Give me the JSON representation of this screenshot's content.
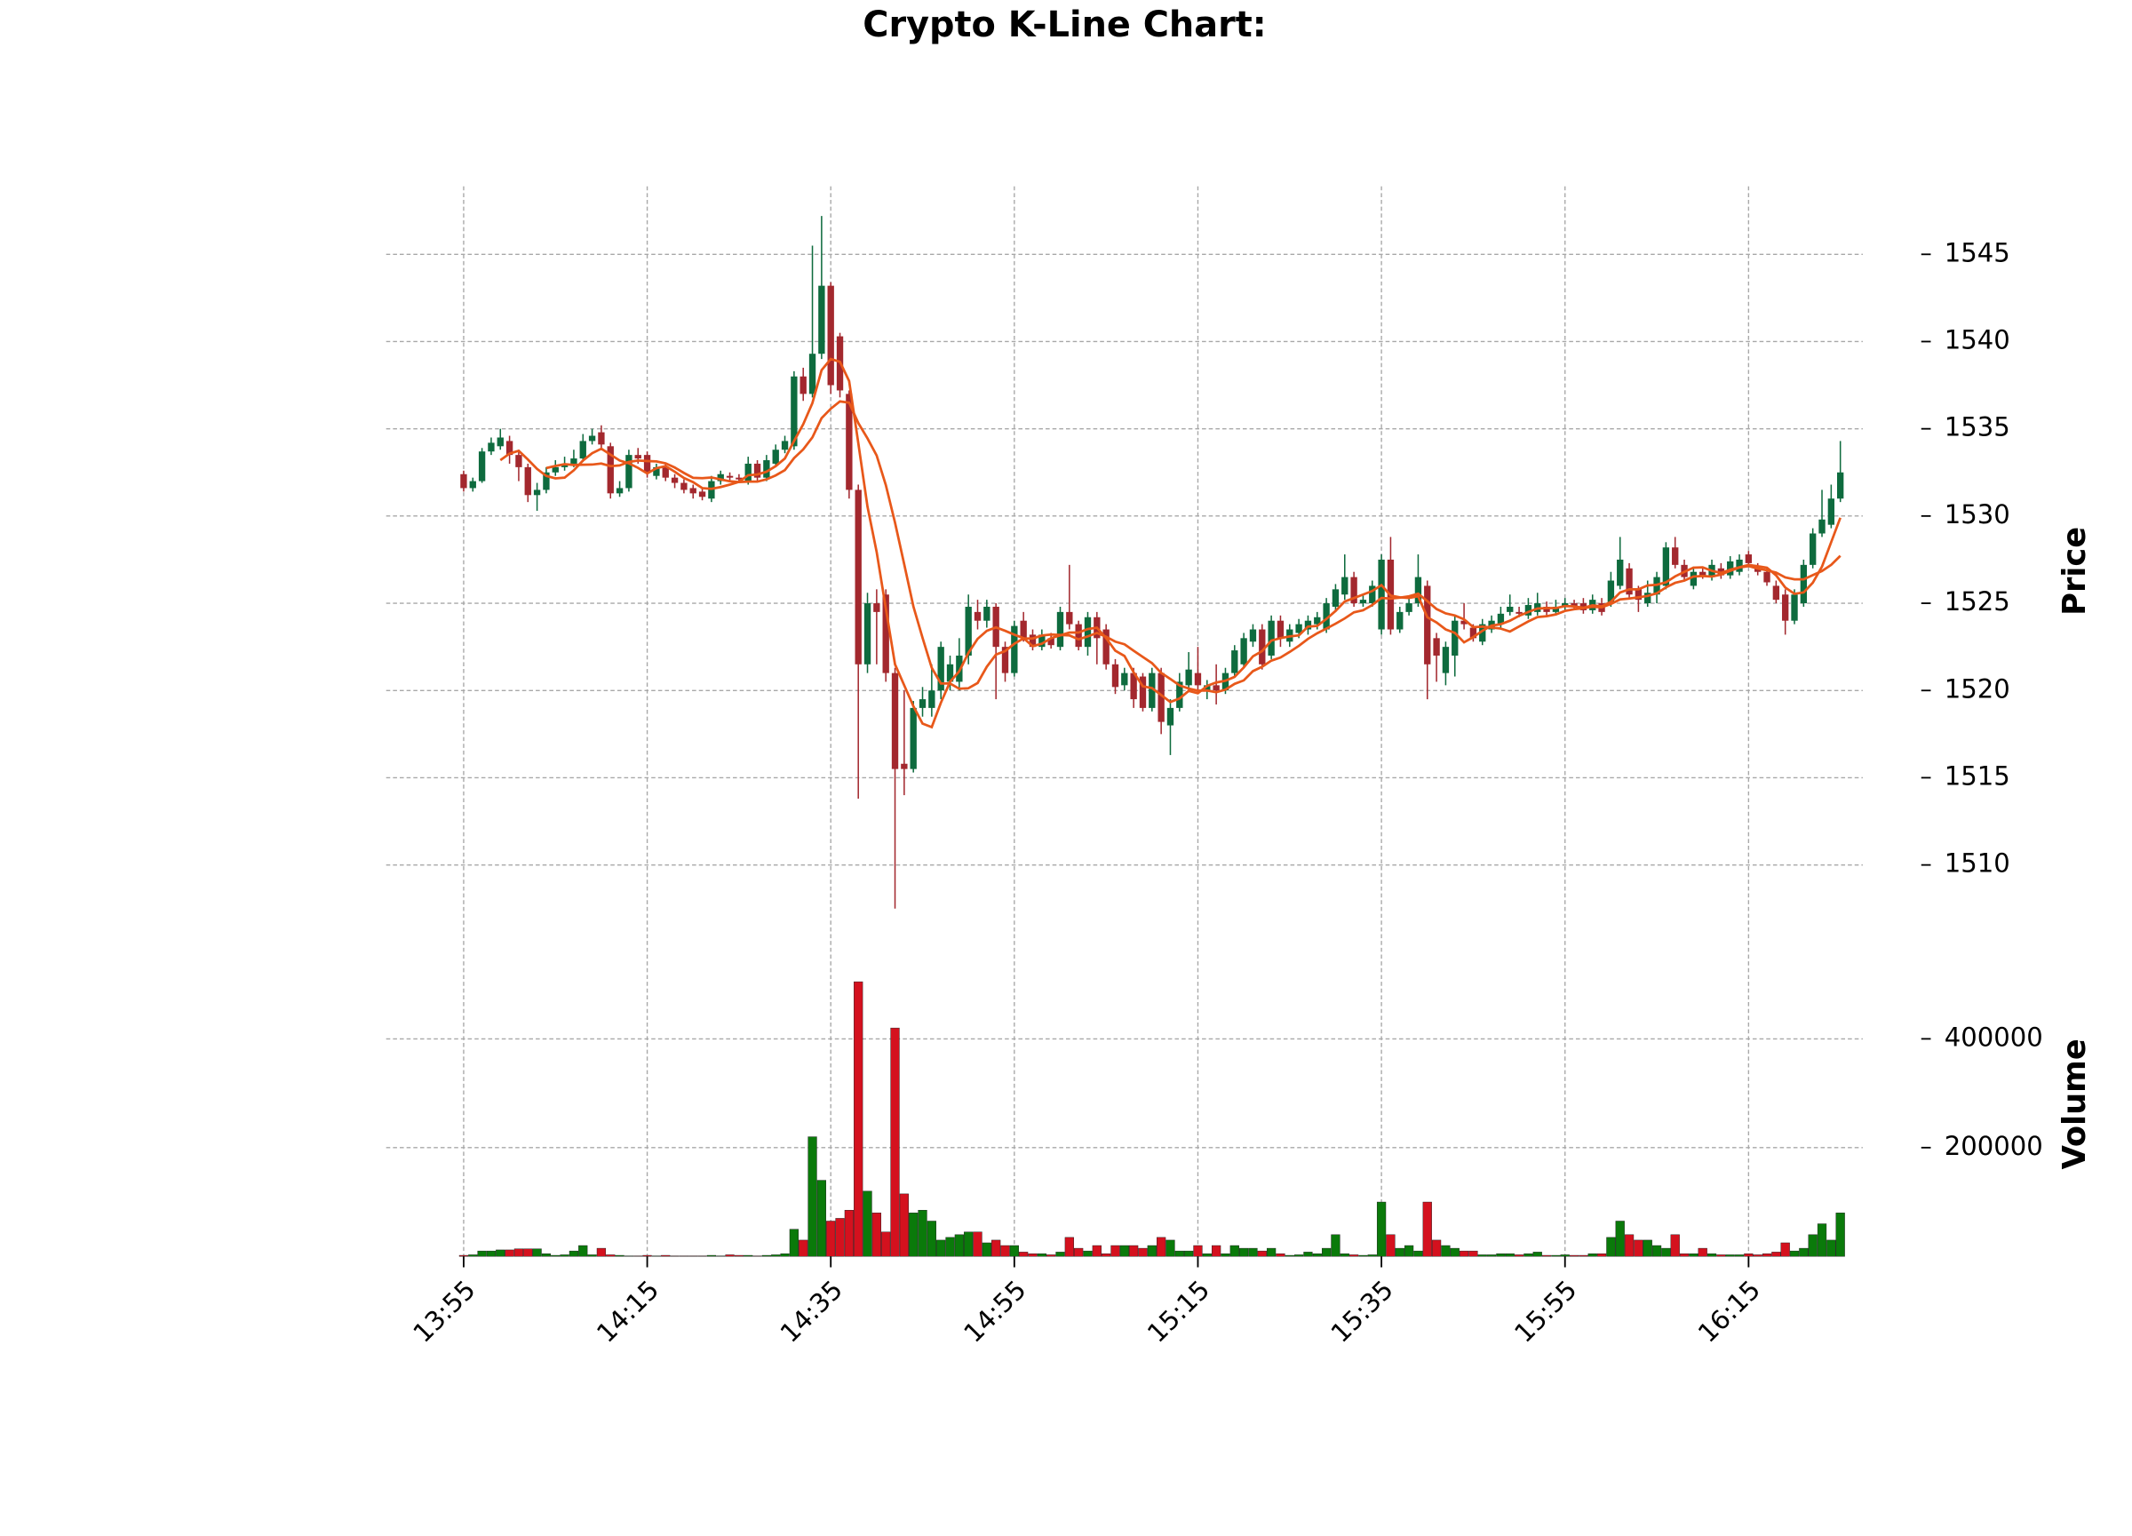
{
  "chart_data": {
    "type": "candlestick",
    "title": "Crypto K-Line Chart:",
    "ylabel": "Price",
    "volume_label": "Volume",
    "categories": [
      "13:55",
      null,
      null,
      null,
      null,
      null,
      null,
      null,
      null,
      null,
      null,
      null,
      null,
      null,
      null,
      null,
      null,
      null,
      null,
      null,
      "14:15",
      null,
      null,
      null,
      null,
      null,
      null,
      null,
      null,
      null,
      null,
      null,
      null,
      null,
      null,
      null,
      null,
      null,
      null,
      null,
      "14:35",
      null,
      null,
      null,
      null,
      null,
      null,
      null,
      null,
      null,
      null,
      null,
      null,
      null,
      null,
      null,
      null,
      null,
      null,
      null,
      "14:55",
      null,
      null,
      null,
      null,
      null,
      null,
      null,
      null,
      null,
      null,
      null,
      null,
      null,
      null,
      null,
      null,
      null,
      null,
      null,
      "15:15",
      null,
      null,
      null,
      null,
      null,
      null,
      null,
      null,
      null,
      null,
      null,
      null,
      null,
      null,
      null,
      null,
      null,
      null,
      null,
      "15:35",
      null,
      null,
      null,
      null,
      null,
      null,
      null,
      null,
      null,
      null,
      null,
      null,
      null,
      null,
      null,
      null,
      null,
      null,
      null,
      "15:55",
      null,
      null,
      null,
      null,
      null,
      null,
      null,
      null,
      null,
      null,
      null,
      null,
      null,
      null,
      null,
      null,
      null,
      null,
      null,
      "16:15",
      null,
      null,
      null,
      null,
      null,
      null,
      null,
      null,
      null,
      null
    ],
    "open": [
      1532.4,
      1531.6,
      1532.0,
      1533.7,
      1534.0,
      1534.3,
      1533.5,
      1532.8,
      1531.2,
      1531.5,
      1532.5,
      1532.8,
      1533.0,
      1533.3,
      1534.3,
      1534.8,
      1534.0,
      1531.3,
      1531.6,
      1533.5,
      1533.5,
      1532.3,
      1532.8,
      1532.2,
      1531.9,
      1531.6,
      1531.4,
      1531.0,
      1532.0,
      1532.3,
      1532.2,
      1532.0,
      1533.0,
      1532.2,
      1533.0,
      1533.8,
      1534.0,
      1538.0,
      1537.0,
      1539.3,
      1543.2,
      1540.3,
      1537.0,
      1531.5,
      1521.5,
      1525.0,
      1525.5,
      1521.0,
      1515.8,
      1515.5,
      1519.0,
      1519.0,
      1520.0,
      1520.5,
      1520.5,
      1522.0,
      1524.5,
      1524.0,
      1524.8,
      1522.5,
      1521.0,
      1524.0,
      1523.2,
      1522.5,
      1523.0,
      1522.5,
      1524.5,
      1523.8,
      1522.5,
      1524.2,
      1523.5,
      1521.5,
      1520.3,
      1521.0,
      1520.8,
      1519.0,
      1521.0,
      1518.0,
      1519.0,
      1520.3,
      1521.0,
      1520.0,
      1520.3,
      1520.0,
      1521.0,
      1521.5,
      1522.8,
      1523.5,
      1522.0,
      1524.0,
      1522.8,
      1523.3,
      1523.5,
      1523.8,
      1523.5,
      1524.8,
      1525.5,
      1526.5,
      1525.0,
      1525.0,
      1523.5,
      1527.5,
      1523.5,
      1524.5,
      1525.0,
      1526.0,
      1523.0,
      1521.0,
      1522.0,
      1524.0,
      1523.6,
      1522.8,
      1523.5,
      1523.8,
      1524.5,
      1524.5,
      1524.3,
      1524.5,
      1524.8,
      1524.5,
      1524.8,
      1525.0,
      1525.0,
      1524.6,
      1525.0,
      1525.0,
      1526.0,
      1527.0,
      1525.8,
      1525.0,
      1525.5,
      1526.0,
      1528.2,
      1527.2,
      1526.0,
      1526.8,
      1526.5,
      1527.0,
      1526.6,
      1526.8,
      1527.8,
      1527.0,
      1526.8,
      1526.0,
      1525.5,
      1524.0,
      1525.0,
      1527.2,
      1529.0,
      1529.5,
      1531.0
    ],
    "high": [
      1532.6,
      1532.2,
      1533.9,
      1534.5,
      1535.0,
      1534.6,
      1533.8,
      1533.0,
      1531.9,
      1532.8,
      1533.2,
      1533.4,
      1533.8,
      1534.7,
      1535.0,
      1535.2,
      1534.2,
      1532.0,
      1533.8,
      1533.9,
      1533.7,
      1533.0,
      1533.0,
      1532.4,
      1532.1,
      1531.8,
      1531.6,
      1532.3,
      1532.6,
      1532.5,
      1532.4,
      1533.4,
      1533.2,
      1533.5,
      1534.1,
      1534.6,
      1538.3,
      1538.5,
      1545.5,
      1547.2,
      1543.4,
      1540.5,
      1537.2,
      1531.8,
      1525.6,
      1525.8,
      1525.8,
      1521.3,
      1520.0,
      1519.4,
      1520.2,
      1521.5,
      1522.8,
      1522.0,
      1523.0,
      1525.5,
      1525.2,
      1525.2,
      1525.0,
      1522.8,
      1524.0,
      1524.5,
      1523.5,
      1523.5,
      1523.3,
      1524.8,
      1527.2,
      1524.0,
      1524.5,
      1524.5,
      1523.8,
      1521.8,
      1521.3,
      1521.3,
      1521.0,
      1521.3,
      1521.3,
      1519.5,
      1521.0,
      1522.2,
      1522.5,
      1520.6,
      1521.5,
      1521.3,
      1522.6,
      1523.3,
      1523.8,
      1523.8,
      1524.3,
      1524.3,
      1523.8,
      1524.1,
      1524.3,
      1524.5,
      1525.3,
      1526.1,
      1527.8,
      1526.8,
      1525.5,
      1526.3,
      1527.8,
      1528.8,
      1524.8,
      1525.3,
      1527.8,
      1526.3,
      1523.3,
      1522.8,
      1524.3,
      1525.0,
      1523.8,
      1524.1,
      1524.3,
      1524.8,
      1525.5,
      1524.8,
      1525.3,
      1525.6,
      1525.1,
      1525.2,
      1525.3,
      1525.2,
      1525.3,
      1525.5,
      1525.3,
      1526.8,
      1528.8,
      1527.3,
      1526.0,
      1526.3,
      1526.8,
      1528.5,
      1528.8,
      1527.5,
      1527.1,
      1527.0,
      1527.5,
      1527.3,
      1527.7,
      1527.8,
      1528.0,
      1527.3,
      1527.0,
      1526.3,
      1525.8,
      1525.8,
      1527.5,
      1529.3,
      1531.5,
      1531.8,
      1534.3
    ],
    "low": [
      1531.4,
      1531.4,
      1531.9,
      1533.5,
      1533.8,
      1533.0,
      1532.0,
      1530.8,
      1530.3,
      1531.3,
      1532.3,
      1532.6,
      1532.8,
      1533.1,
      1534.1,
      1533.8,
      1531.0,
      1531.1,
      1531.4,
      1533.0,
      1532.2,
      1532.1,
      1532.0,
      1531.6,
      1531.3,
      1531.0,
      1530.9,
      1530.8,
      1531.8,
      1532.0,
      1531.9,
      1531.8,
      1532.0,
      1532.0,
      1532.9,
      1533.6,
      1533.8,
      1536.6,
      1536.8,
      1539.0,
      1537.0,
      1536.8,
      1531.0,
      1513.8,
      1521.0,
      1521.5,
      1520.5,
      1507.5,
      1514.0,
      1515.3,
      1518.5,
      1518.5,
      1519.5,
      1520.0,
      1520.0,
      1521.5,
      1523.5,
      1523.6,
      1519.5,
      1520.5,
      1520.8,
      1522.8,
      1522.3,
      1522.3,
      1522.4,
      1522.3,
      1523.5,
      1522.3,
      1522.0,
      1521.5,
      1521.2,
      1519.8,
      1520.0,
      1519.0,
      1518.8,
      1518.8,
      1517.5,
      1516.3,
      1518.8,
      1520.0,
      1519.8,
      1519.5,
      1519.2,
      1519.8,
      1520.8,
      1521.3,
      1522.5,
      1521.2,
      1521.8,
      1522.5,
      1522.5,
      1523.0,
      1523.2,
      1523.5,
      1523.3,
      1524.5,
      1525.2,
      1524.8,
      1524.8,
      1524.8,
      1523.2,
      1523.2,
      1523.3,
      1524.3,
      1524.8,
      1519.5,
      1520.5,
      1520.3,
      1520.8,
      1523.5,
      1522.8,
      1522.6,
      1523.3,
      1523.5,
      1524.3,
      1524.2,
      1524.1,
      1524.3,
      1524.3,
      1524.3,
      1524.6,
      1524.6,
      1524.4,
      1524.4,
      1524.3,
      1524.8,
      1525.8,
      1525.3,
      1524.5,
      1524.8,
      1525.0,
      1525.8,
      1527.0,
      1526.3,
      1525.8,
      1526.4,
      1526.3,
      1526.4,
      1526.4,
      1526.6,
      1527.1,
      1526.6,
      1526.0,
      1525.0,
      1523.2,
      1523.8,
      1524.8,
      1527.0,
      1528.8,
      1529.3,
      1530.8
    ],
    "close": [
      1531.6,
      1532.0,
      1533.7,
      1534.2,
      1534.5,
      1533.5,
      1532.8,
      1531.2,
      1531.5,
      1532.5,
      1532.8,
      1533.0,
      1533.3,
      1534.3,
      1534.6,
      1534.1,
      1531.3,
      1531.6,
      1533.5,
      1533.3,
      1532.5,
      1532.8,
      1532.2,
      1531.9,
      1531.5,
      1531.3,
      1531.1,
      1532.0,
      1532.4,
      1532.2,
      1532.1,
      1533.0,
      1532.2,
      1533.2,
      1533.8,
      1534.3,
      1538.0,
      1537.0,
      1539.3,
      1543.2,
      1537.5,
      1537.2,
      1531.5,
      1521.5,
      1525.0,
      1524.5,
      1521.0,
      1515.5,
      1515.5,
      1519.0,
      1519.5,
      1520.0,
      1522.5,
      1521.5,
      1522.0,
      1524.8,
      1524.0,
      1524.8,
      1522.5,
      1521.0,
      1523.7,
      1523.0,
      1522.5,
      1523.2,
      1522.6,
      1524.5,
      1523.8,
      1522.5,
      1524.2,
      1523.0,
      1521.5,
      1520.2,
      1521.0,
      1519.5,
      1519.0,
      1521.0,
      1518.2,
      1519.0,
      1520.5,
      1521.2,
      1520.3,
      1520.3,
      1520.0,
      1521.0,
      1522.3,
      1523.0,
      1523.5,
      1521.5,
      1524.0,
      1523.0,
      1523.5,
      1523.8,
      1524.0,
      1524.2,
      1525.0,
      1525.8,
      1526.5,
      1525.0,
      1525.2,
      1526.0,
      1527.5,
      1523.5,
      1524.5,
      1525.0,
      1526.5,
      1521.5,
      1522.0,
      1522.5,
      1524.0,
      1523.8,
      1523.0,
      1523.8,
      1524.0,
      1524.4,
      1524.8,
      1524.4,
      1524.9,
      1525.0,
      1524.5,
      1524.8,
      1525.0,
      1524.8,
      1524.6,
      1525.2,
      1524.5,
      1526.3,
      1527.5,
      1525.5,
      1525.2,
      1525.6,
      1526.5,
      1528.2,
      1527.2,
      1526.5,
      1526.8,
      1526.6,
      1527.2,
      1526.6,
      1527.4,
      1527.5,
      1527.3,
      1526.8,
      1526.2,
      1525.2,
      1524.0,
      1525.5,
      1527.2,
      1529.0,
      1529.8,
      1531.0,
      1532.5
    ],
    "volume": [
      2000,
      3000,
      10000,
      10000,
      12000,
      12000,
      14000,
      14000,
      14000,
      5000,
      2000,
      3000,
      10000,
      20000,
      3000,
      15000,
      3000,
      2000,
      1000,
      1000,
      2000,
      1000,
      2000,
      1000,
      1000,
      1000,
      1000,
      2000,
      1000,
      3000,
      2000,
      2000,
      1000,
      2000,
      3000,
      5000,
      50000,
      30000,
      220000,
      140000,
      65000,
      70000,
      85000,
      505000,
      120000,
      80000,
      45000,
      420000,
      115000,
      80000,
      85000,
      65000,
      30000,
      35000,
      40000,
      45000,
      45000,
      25000,
      30000,
      20000,
      20000,
      8000,
      5000,
      5000,
      3000,
      8000,
      35000,
      15000,
      10000,
      20000,
      5000,
      20000,
      20000,
      20000,
      15000,
      20000,
      35000,
      30000,
      10000,
      10000,
      20000,
      5000,
      20000,
      5000,
      20000,
      15000,
      15000,
      10000,
      15000,
      5000,
      2000,
      3000,
      8000,
      5000,
      15000,
      40000,
      5000,
      3000,
      2000,
      3000,
      100000,
      40000,
      15000,
      20000,
      10000,
      100000,
      30000,
      20000,
      15000,
      10000,
      10000,
      3000,
      3000,
      5000,
      5000,
      3000,
      5000,
      8000,
      2000,
      2000,
      3000,
      2000,
      2000,
      5000,
      5000,
      35000,
      65000,
      40000,
      30000,
      30000,
      20000,
      15000,
      40000,
      5000,
      5000,
      15000,
      5000,
      3000,
      3000,
      3000,
      5000,
      3000,
      5000,
      8000,
      25000,
      10000,
      15000,
      40000,
      60000,
      30000,
      80000
    ],
    "ylim": [
      1505.8,
      1548.9
    ],
    "yticks": [
      1510,
      1515,
      1520,
      1525,
      1530,
      1535,
      1540,
      1545
    ],
    "volume_ylim": [
      0,
      560000
    ],
    "volume_yticks": [
      200000,
      400000
    ],
    "mav": [
      5,
      10
    ],
    "grid": true,
    "up_color": "#0e6b3e",
    "down_color": "#a3282e",
    "volume_up_color": "#0a7a0a",
    "volume_down_color": "#d4111e",
    "mav_color": "#e8581a"
  }
}
